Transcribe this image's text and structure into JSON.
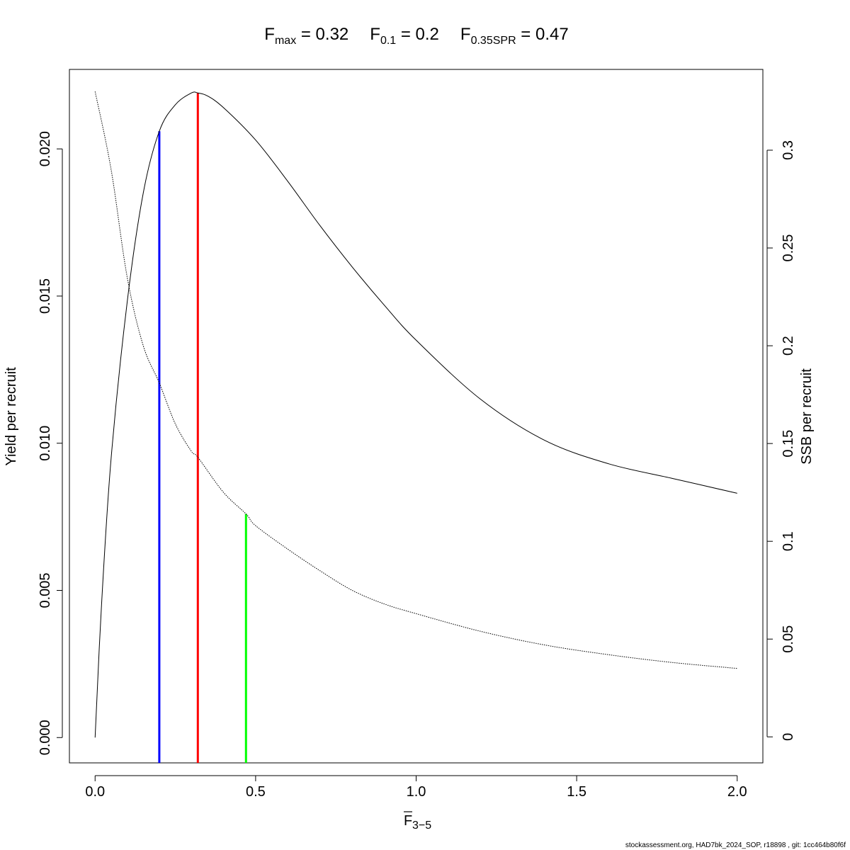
{
  "title": {
    "parts": [
      {
        "main": "F",
        "sub": "max",
        "rest": " = 0.32"
      },
      {
        "main": "F",
        "sub": "0.1",
        "rest": " = 0.2"
      },
      {
        "main": "F",
        "sub": "0.35SPR",
        "rest": " = 0.47"
      }
    ]
  },
  "footer": "stockassessment.org, HAD7bk_2024_SOP, r18898 , git: 1cc464b80f6f",
  "chart_data": {
    "type": "line",
    "xlabel": {
      "main": "F",
      "overline": true,
      "sub": "3−5"
    },
    "ylabel_left": "Yield per recruit",
    "ylabel_right": "SSB per recruit",
    "xlim": [
      -0.08,
      2.08
    ],
    "ylim_left": [
      -0.00086,
      0.0227
    ],
    "ylim_right": [
      -0.0133,
      0.3413
    ],
    "x_ticks": [
      0,
      0.5,
      1,
      1.5,
      2
    ],
    "x_tick_labels": [
      "0.0",
      "0.5",
      "1.0",
      "1.5",
      "2.0"
    ],
    "y_left_ticks": [
      0,
      0.005,
      0.01,
      0.015,
      0.02
    ],
    "y_left_tick_labels": [
      "0.000",
      "0.005",
      "0.010",
      "0.015",
      "0.020"
    ],
    "y_right_ticks": [
      0,
      0.05,
      0.1,
      0.15,
      0.2,
      0.25,
      0.3
    ],
    "y_right_tick_labels": [
      "0",
      "0.05",
      "0.1",
      "0.15",
      "0.2",
      "0.25",
      "0.3"
    ],
    "series": [
      {
        "axis": "left",
        "style": "solid",
        "color": "#000000",
        "points": [
          [
            0,
            0
          ],
          [
            0.02,
            0.0045
          ],
          [
            0.05,
            0.0095
          ],
          [
            0.1,
            0.0148
          ],
          [
            0.15,
            0.0185
          ],
          [
            0.2,
            0.0206
          ],
          [
            0.25,
            0.0215
          ],
          [
            0.3,
            0.0219
          ],
          [
            0.32,
            0.0219
          ],
          [
            0.35,
            0.0218
          ],
          [
            0.4,
            0.0214
          ],
          [
            0.5,
            0.0203
          ],
          [
            0.6,
            0.0189
          ],
          [
            0.7,
            0.0174
          ],
          [
            0.8,
            0.016
          ],
          [
            0.9,
            0.0147
          ],
          [
            1.0,
            0.0135
          ],
          [
            1.2,
            0.0115
          ],
          [
            1.4,
            0.0101
          ],
          [
            1.6,
            0.0093
          ],
          [
            1.8,
            0.0088
          ],
          [
            2.0,
            0.0083
          ]
        ]
      },
      {
        "axis": "right",
        "style": "dotted",
        "color": "#000000",
        "points": [
          [
            0,
            0.33
          ],
          [
            0.05,
            0.29
          ],
          [
            0.1,
            0.235
          ],
          [
            0.15,
            0.2
          ],
          [
            0.2,
            0.181
          ],
          [
            0.25,
            0.16
          ],
          [
            0.3,
            0.146
          ],
          [
            0.32,
            0.143
          ],
          [
            0.4,
            0.125
          ],
          [
            0.47,
            0.114
          ],
          [
            0.5,
            0.108
          ],
          [
            0.6,
            0.096
          ],
          [
            0.7,
            0.085
          ],
          [
            0.8,
            0.075
          ],
          [
            0.9,
            0.068
          ],
          [
            1.0,
            0.063
          ],
          [
            1.2,
            0.054
          ],
          [
            1.4,
            0.047
          ],
          [
            1.6,
            0.042
          ],
          [
            1.8,
            0.038
          ],
          [
            2.0,
            0.035
          ]
        ]
      }
    ],
    "reference_lines": [
      {
        "x": 0.2,
        "axis": "left",
        "y_top": 0.0206,
        "color": "#0000ff"
      },
      {
        "x": 0.32,
        "axis": "left",
        "y_top": 0.0219,
        "color": "#ff0000"
      },
      {
        "x": 0.47,
        "axis": "right",
        "y_top": 0.114,
        "color": "#00ff00"
      }
    ]
  }
}
